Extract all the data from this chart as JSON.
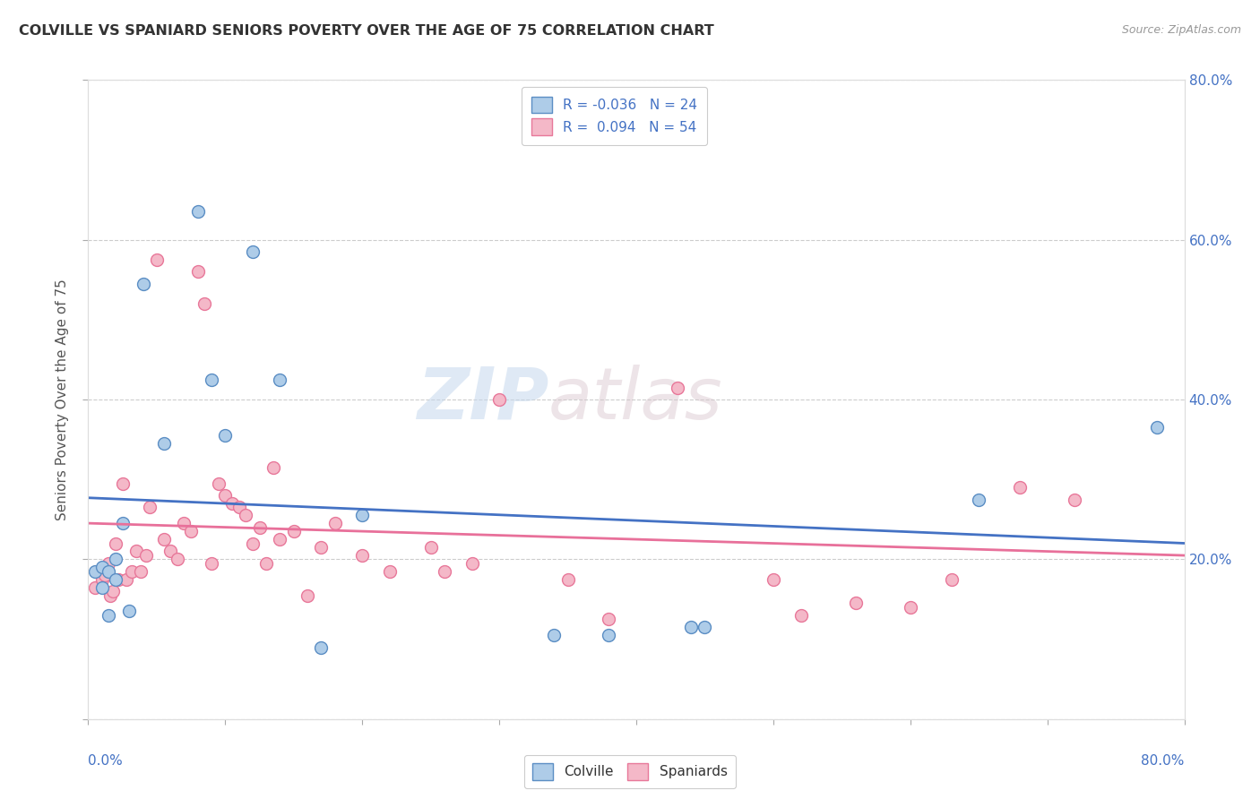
{
  "title": "COLVILLE VS SPANIARD SENIORS POVERTY OVER THE AGE OF 75 CORRELATION CHART",
  "source": "Source: ZipAtlas.com",
  "ylabel": "Seniors Poverty Over the Age of 75",
  "xlim": [
    0.0,
    0.8
  ],
  "ylim": [
    0.0,
    0.8
  ],
  "yticks": [
    0.0,
    0.2,
    0.4,
    0.6,
    0.8
  ],
  "xticks": [
    0.0,
    0.1,
    0.2,
    0.3,
    0.4,
    0.5,
    0.6,
    0.7,
    0.8
  ],
  "colville_R": -0.036,
  "colville_N": 24,
  "spaniard_R": 0.094,
  "spaniard_N": 54,
  "colville_color": "#aecce8",
  "spaniard_color": "#f4b8c8",
  "colville_edge_color": "#5b8ec4",
  "spaniard_edge_color": "#e8789a",
  "colville_line_color": "#4472c4",
  "spaniard_line_color": "#e8709a",
  "colville_x": [
    0.005,
    0.01,
    0.01,
    0.015,
    0.015,
    0.02,
    0.02,
    0.025,
    0.03,
    0.04,
    0.055,
    0.08,
    0.09,
    0.1,
    0.12,
    0.14,
    0.17,
    0.2,
    0.34,
    0.38,
    0.44,
    0.45,
    0.65,
    0.78
  ],
  "colville_y": [
    0.185,
    0.19,
    0.165,
    0.185,
    0.13,
    0.2,
    0.175,
    0.245,
    0.135,
    0.545,
    0.345,
    0.635,
    0.425,
    0.355,
    0.585,
    0.425,
    0.09,
    0.255,
    0.105,
    0.105,
    0.115,
    0.115,
    0.275,
    0.365
  ],
  "spaniard_x": [
    0.005,
    0.01,
    0.012,
    0.015,
    0.016,
    0.018,
    0.02,
    0.022,
    0.025,
    0.028,
    0.032,
    0.035,
    0.038,
    0.042,
    0.045,
    0.05,
    0.055,
    0.06,
    0.065,
    0.07,
    0.075,
    0.08,
    0.085,
    0.09,
    0.095,
    0.1,
    0.105,
    0.11,
    0.115,
    0.12,
    0.125,
    0.13,
    0.135,
    0.14,
    0.15,
    0.16,
    0.17,
    0.18,
    0.2,
    0.22,
    0.25,
    0.26,
    0.28,
    0.3,
    0.35,
    0.38,
    0.43,
    0.5,
    0.52,
    0.56,
    0.6,
    0.63,
    0.68,
    0.72
  ],
  "spaniard_y": [
    0.165,
    0.175,
    0.18,
    0.195,
    0.155,
    0.16,
    0.22,
    0.175,
    0.295,
    0.175,
    0.185,
    0.21,
    0.185,
    0.205,
    0.265,
    0.575,
    0.225,
    0.21,
    0.2,
    0.245,
    0.235,
    0.56,
    0.52,
    0.195,
    0.295,
    0.28,
    0.27,
    0.265,
    0.255,
    0.22,
    0.24,
    0.195,
    0.315,
    0.225,
    0.235,
    0.155,
    0.215,
    0.245,
    0.205,
    0.185,
    0.215,
    0.185,
    0.195,
    0.4,
    0.175,
    0.125,
    0.415,
    0.175,
    0.13,
    0.145,
    0.14,
    0.175,
    0.29,
    0.275
  ],
  "watermark_zip": "ZIP",
  "watermark_atlas": "atlas",
  "background_color": "#ffffff",
  "grid_color": "#cccccc",
  "title_color": "#333333",
  "axis_label_color": "#4472c4",
  "marker_size": 100,
  "legend_label_color": "#4472c4"
}
